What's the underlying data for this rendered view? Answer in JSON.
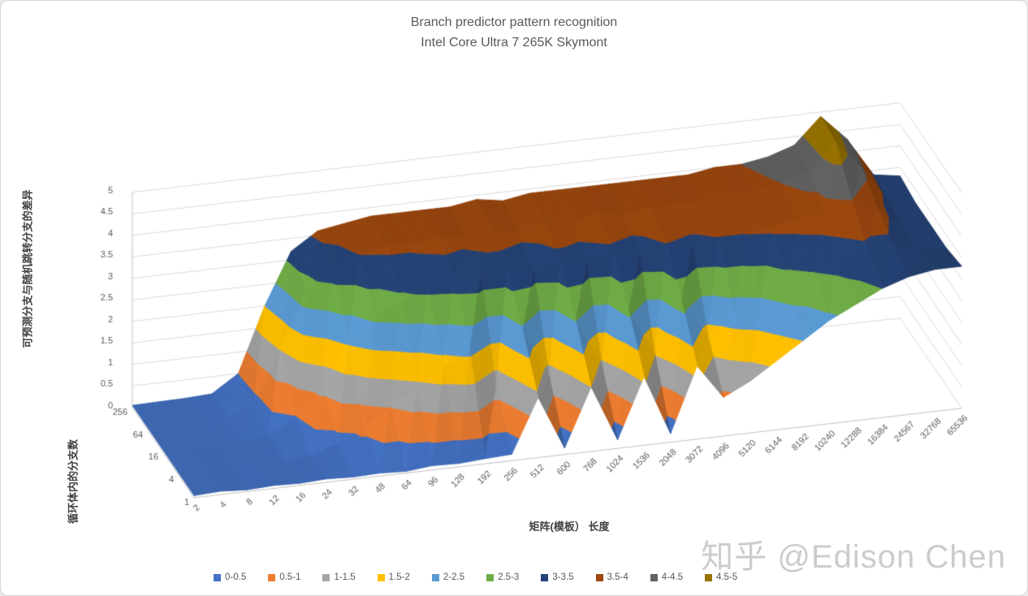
{
  "title": {
    "line1": "Branch predictor pattern recognition",
    "line2": "Intel Core Ultra 7 265K Skymont"
  },
  "axes": {
    "value_axis": {
      "title": "可预测分支与随机跳转分支的差异",
      "min": 0,
      "max": 5,
      "step": 0.5,
      "ticks": [
        "0",
        "0.5",
        "1",
        "1.5",
        "2",
        "2.5",
        "3",
        "3.5",
        "4",
        "4.5",
        "5"
      ]
    },
    "category_axis": {
      "title": "矩阵(模板） 长度"
    },
    "series_axis": {
      "title": "循环体内的分支数",
      "labels": [
        "1",
        "4",
        "16",
        "64",
        "256"
      ]
    }
  },
  "legend": [
    {
      "label": "0-0.5",
      "color": "#4472C4"
    },
    {
      "label": "0.5-1",
      "color": "#ED7D31"
    },
    {
      "label": "1-1.5",
      "color": "#A5A5A5"
    },
    {
      "label": "1.5-2",
      "color": "#FFC000"
    },
    {
      "label": "2-2.5",
      "color": "#5B9BD5"
    },
    {
      "label": "2.5-3",
      "color": "#70AD47"
    },
    {
      "label": "3-3.5",
      "color": "#264478"
    },
    {
      "label": "3.5-4",
      "color": "#9E480E"
    },
    {
      "label": "4-4.5",
      "color": "#636363"
    },
    {
      "label": "4.5-5",
      "color": "#997300"
    }
  ],
  "watermark": "知乎 @Edison Chen",
  "chart_data": {
    "type": "surface-3d",
    "title": "Branch predictor pattern recognition — Intel Core Ultra 7 265K Skymont",
    "xlabel": "矩阵(模板） 长度",
    "ylabel": "可预测分支与随机跳转分支的差异",
    "series_label": "循环体内的分支数",
    "ylim": [
      0,
      5
    ],
    "band_step": 0.5,
    "grid": true,
    "legend_position": "bottom",
    "x_categories": [
      "2",
      "4",
      "8",
      "12",
      "16",
      "24",
      "32",
      "48",
      "64",
      "96",
      "128",
      "192",
      "256",
      "512",
      "600",
      "768",
      "1024",
      "1536",
      "2048",
      "3072",
      "4096",
      "5120",
      "6144",
      "8192",
      "10240",
      "12288",
      "16384",
      "24567",
      "32768",
      "65536"
    ],
    "series": [
      {
        "name": "1",
        "values": [
          0.05,
          0.08,
          0.04,
          0.07,
          0.05,
          0.08,
          0.05,
          0.07,
          0.04,
          0.1,
          0.08,
          0.12,
          0.15,
          1.4,
          0.15,
          1.5,
          0.2,
          1.6,
          0.2,
          1.7,
          0.9,
          1.2,
          1.6,
          2.0,
          2.4,
          2.7,
          3.0,
          3.2,
          3.3,
          3.3
        ]
      },
      {
        "name": "4",
        "values": [
          0.05,
          0.07,
          0.05,
          0.08,
          0.06,
          0.1,
          0.3,
          0.6,
          1.0,
          1.4,
          1.8,
          2.1,
          1.2,
          2.4,
          1.3,
          2.5,
          1.4,
          2.6,
          1.5,
          2.7,
          1.8,
          2.2,
          2.4,
          2.8,
          3.0,
          3.2,
          3.4,
          3.4,
          3.2,
          3.2
        ]
      },
      {
        "name": "16",
        "values": [
          0.05,
          0.06,
          0.05,
          0.07,
          0.1,
          0.5,
          1.2,
          2.0,
          2.6,
          2.9,
          3.1,
          3.2,
          3.3,
          3.3,
          3.2,
          3.4,
          3.3,
          3.4,
          3.3,
          3.5,
          3.4,
          3.5,
          3.5,
          3.6,
          3.7,
          3.8,
          4.0,
          3.7,
          3.2,
          3.2
        ]
      },
      {
        "name": "64",
        "values": [
          0.05,
          0.06,
          0.06,
          0.1,
          0.3,
          1.5,
          2.8,
          3.3,
          3.5,
          3.6,
          3.6,
          3.7,
          3.6,
          3.7,
          3.6,
          3.7,
          3.7,
          3.8,
          3.7,
          3.8,
          3.8,
          3.8,
          3.9,
          3.9,
          4.0,
          4.2,
          4.8,
          4.1,
          3.3,
          3.2
        ]
      },
      {
        "name": "256",
        "values": [
          0.05,
          0.06,
          0.07,
          0.1,
          0.5,
          2.0,
          3.2,
          3.6,
          3.7,
          3.8,
          3.8,
          3.8,
          3.8,
          3.9,
          3.8,
          3.9,
          3.9,
          3.9,
          3.9,
          3.9,
          3.9,
          3.9,
          4.0,
          4.0,
          4.1,
          4.3,
          4.9,
          4.3,
          3.4,
          3.3
        ]
      }
    ],
    "value_bands": [
      {
        "range": "0-0.5",
        "color": "#4472C4"
      },
      {
        "range": "0.5-1",
        "color": "#ED7D31"
      },
      {
        "range": "1-1.5",
        "color": "#A5A5A5"
      },
      {
        "range": "1.5-2",
        "color": "#FFC000"
      },
      {
        "range": "2-2.5",
        "color": "#5B9BD5"
      },
      {
        "range": "2.5-3",
        "color": "#70AD47"
      },
      {
        "range": "3-3.5",
        "color": "#264478"
      },
      {
        "range": "3.5-4",
        "color": "#9E480E"
      },
      {
        "range": "4-4.5",
        "color": "#636363"
      },
      {
        "range": "4.5-5",
        "color": "#997300"
      }
    ]
  }
}
